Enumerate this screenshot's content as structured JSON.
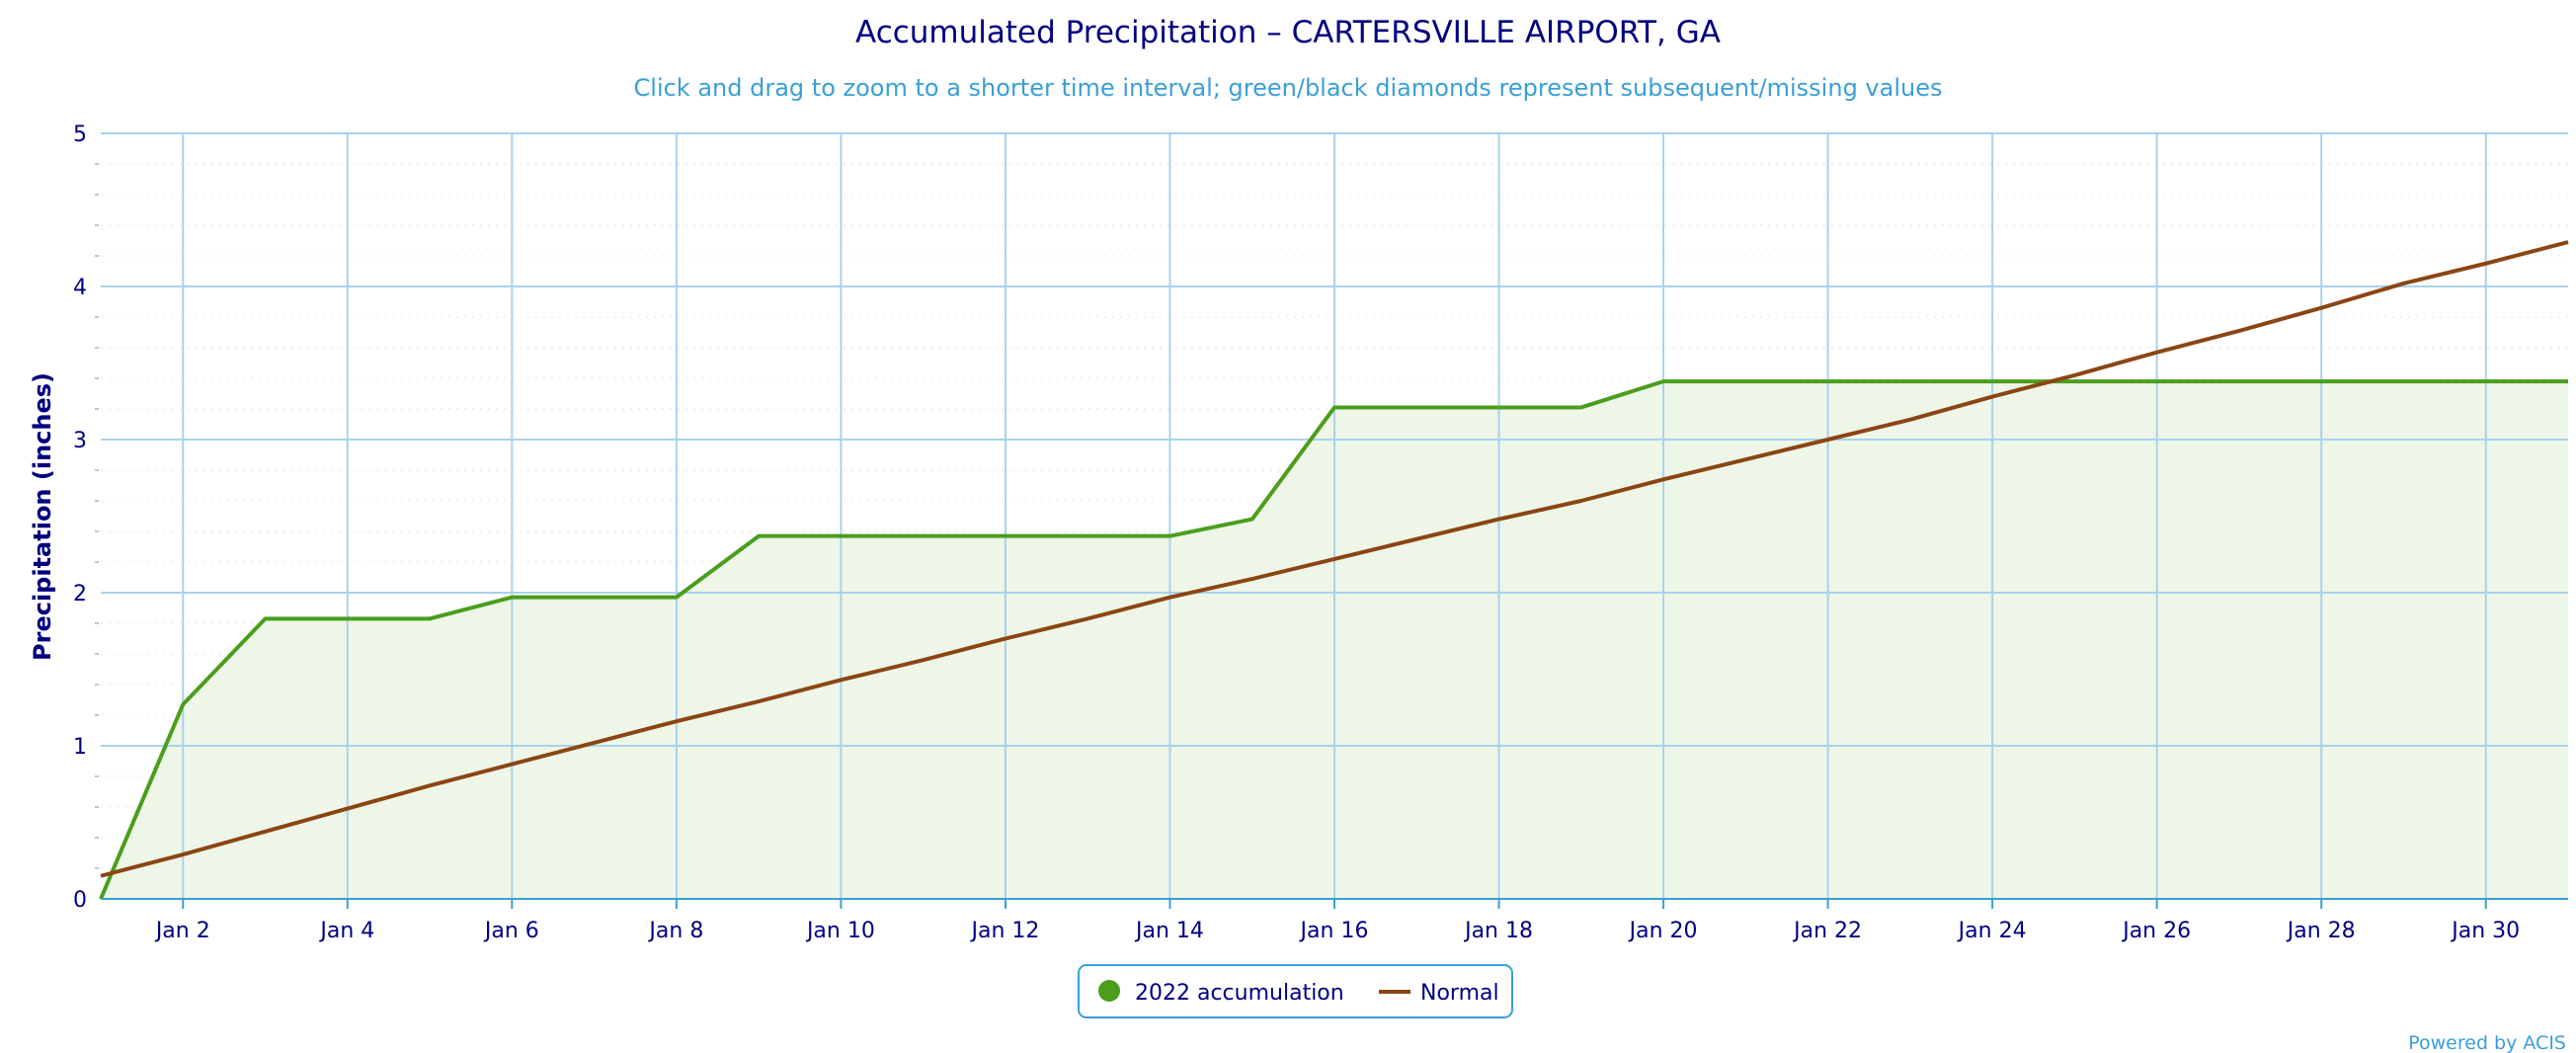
{
  "chart_data": {
    "type": "line",
    "title": "Accumulated Precipitation – CARTERSVILLE AIRPORT, GA",
    "subtitle": "Click and drag to zoom to a shorter time interval; green/black diamonds represent subsequent/missing values",
    "ylabel": "Precipitation (inches)",
    "xlabel": "",
    "ylim": [
      0,
      5
    ],
    "y_ticks": [
      0,
      1,
      2,
      3,
      4,
      5
    ],
    "x_day_range": [
      1,
      31
    ],
    "x_ticks": [
      {
        "day": 2,
        "label": "Jan 2"
      },
      {
        "day": 4,
        "label": "Jan 4"
      },
      {
        "day": 6,
        "label": "Jan 6"
      },
      {
        "day": 8,
        "label": "Jan 8"
      },
      {
        "day": 10,
        "label": "Jan 10"
      },
      {
        "day": 12,
        "label": "Jan 12"
      },
      {
        "day": 14,
        "label": "Jan 14"
      },
      {
        "day": 16,
        "label": "Jan 16"
      },
      {
        "day": 18,
        "label": "Jan 18"
      },
      {
        "day": 20,
        "label": "Jan 20"
      },
      {
        "day": 22,
        "label": "Jan 22"
      },
      {
        "day": 24,
        "label": "Jan 24"
      },
      {
        "day": 26,
        "label": "Jan 26"
      },
      {
        "day": 28,
        "label": "Jan 28"
      },
      {
        "day": 30,
        "label": "Jan 30"
      }
    ],
    "grid": true,
    "legend_position": "bottom-center",
    "series": [
      {
        "name": "2022 accumulation",
        "color": "#4a9e1c",
        "fill": "#eef6e8",
        "area": true,
        "x": [
          1,
          2,
          3,
          4,
          5,
          6,
          7,
          8,
          9,
          10,
          11,
          12,
          13,
          14,
          15,
          16,
          17,
          18,
          19,
          20,
          21,
          22,
          23,
          24,
          25,
          26,
          27,
          28,
          29,
          30,
          31
        ],
        "y": [
          0.0,
          1.27,
          1.83,
          1.83,
          1.83,
          1.97,
          1.97,
          1.97,
          2.37,
          2.37,
          2.37,
          2.37,
          2.37,
          2.37,
          2.48,
          3.21,
          3.21,
          3.21,
          3.21,
          3.38,
          3.38,
          3.38,
          3.38,
          3.38,
          3.38,
          3.38,
          3.38,
          3.38,
          3.38,
          3.38,
          3.38
        ]
      },
      {
        "name": "Normal",
        "color": "#8b4513",
        "area": false,
        "x": [
          1,
          2,
          3,
          4,
          5,
          6,
          7,
          8,
          9,
          10,
          11,
          12,
          13,
          14,
          15,
          16,
          17,
          18,
          19,
          20,
          21,
          22,
          23,
          24,
          25,
          26,
          27,
          28,
          29,
          30,
          31
        ],
        "y": [
          0.15,
          0.29,
          0.44,
          0.59,
          0.74,
          0.88,
          1.02,
          1.16,
          1.29,
          1.43,
          1.56,
          1.7,
          1.83,
          1.97,
          2.09,
          2.22,
          2.35,
          2.48,
          2.6,
          2.74,
          2.87,
          3.0,
          3.13,
          3.28,
          3.42,
          3.57,
          3.71,
          3.86,
          4.02,
          4.15,
          4.29
        ]
      }
    ],
    "credit": "Powered by ACIS"
  }
}
